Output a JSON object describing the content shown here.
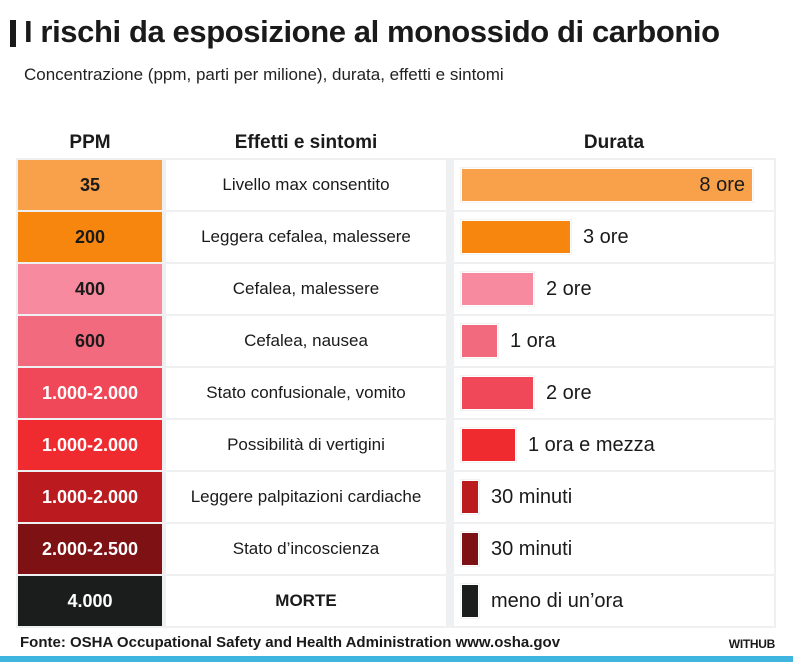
{
  "title": "I rischi da esposizione al monossido di carbonio",
  "subtitle": "Concentrazione (ppm, parti per milione), durata, effetti e sintomi",
  "headers": {
    "ppm": "PPM",
    "effects": "Effetti e sintomi",
    "duration": "Durata"
  },
  "source": "Fonte: OSHA Occupational Safety and Health Administration www.osha.gov",
  "brand": "WITHUB",
  "chart_data": {
    "type": "bar",
    "title": "I rischi da esposizione al monossido di carbonio",
    "subtitle": "Concentrazione (ppm, parti per milione), durata, effetti e sintomi",
    "value_unit": "hours",
    "xlim": [
      0,
      8
    ],
    "rows": [
      {
        "ppm": "35",
        "effect": "Livello max consentito",
        "duration_label": "8 ore",
        "hours": 8,
        "color": "#f8a14a",
        "text_color": "#1a1a1a"
      },
      {
        "ppm": "200",
        "effect": "Leggera cefalea, malessere",
        "duration_label": "3 ore",
        "hours": 3,
        "color": "#f7860f",
        "text_color": "#1a1a1a"
      },
      {
        "ppm": "400",
        "effect": "Cefalea, malessere",
        "duration_label": "2 ore",
        "hours": 2,
        "color": "#f78a9f",
        "text_color": "#1a1a1a"
      },
      {
        "ppm": "600",
        "effect": "Cefalea, nausea",
        "duration_label": "1 ora",
        "hours": 1,
        "color": "#f26a7e",
        "text_color": "#1a1a1a"
      },
      {
        "ppm": "1.000-2.000",
        "effect": "Stato confusionale, vomito",
        "duration_label": "2 ore",
        "hours": 2,
        "color": "#f04858",
        "text_color": "#ffffff"
      },
      {
        "ppm": "1.000-2.000",
        "effect": "Possibilità di vertigini",
        "duration_label": "1 ora e mezza",
        "hours": 1.5,
        "color": "#ef2b30",
        "text_color": "#ffffff"
      },
      {
        "ppm": "1.000-2.000",
        "effect": "Leggere palpitazioni cardiache",
        "duration_label": "30 minuti",
        "hours": 0.5,
        "color": "#bb1a1f",
        "text_color": "#ffffff"
      },
      {
        "ppm": "2.000-2.500",
        "effect": "Stato d’incoscienza",
        "duration_label": "30 minuti",
        "hours": 0.5,
        "color": "#7e1113",
        "text_color": "#ffffff"
      },
      {
        "ppm": "4.000",
        "effect": "MORTE",
        "duration_label": "meno di un’ora",
        "hours": 0.5,
        "color": "#1b1c1c",
        "text_color": "#ffffff",
        "emphasis": true
      }
    ]
  }
}
